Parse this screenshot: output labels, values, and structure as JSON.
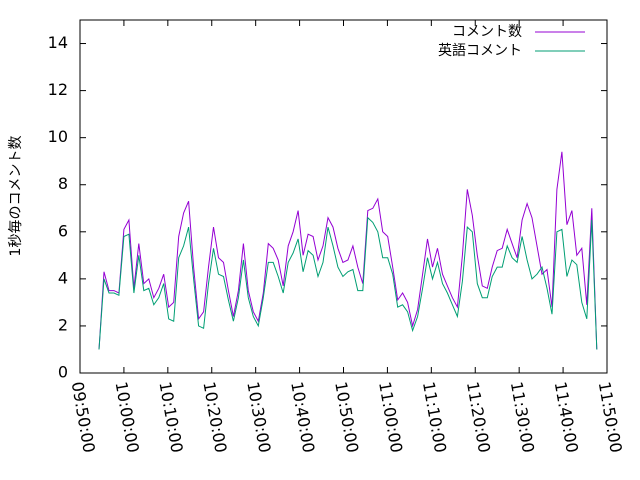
{
  "chart_data": {
    "type": "line",
    "ylabel": "1秒毎のコメント数",
    "x": [
      "09:54:20",
      "09:55:28",
      "09:56:36",
      "09:57:44",
      "09:58:52",
      "10:00:00",
      "10:01:08",
      "10:02:16",
      "10:03:24",
      "10:04:32",
      "10:05:40",
      "10:06:48",
      "10:07:56",
      "10:09:04",
      "10:10:12",
      "10:11:20",
      "10:12:28",
      "10:13:36",
      "10:14:44",
      "10:15:52",
      "10:17:00",
      "10:18:08",
      "10:19:16",
      "10:20:24",
      "10:21:32",
      "10:22:40",
      "10:23:48",
      "10:24:56",
      "10:26:04",
      "10:27:12",
      "10:28:20",
      "10:29:28",
      "10:30:36",
      "10:31:44",
      "10:32:52",
      "10:34:00",
      "10:35:08",
      "10:36:16",
      "10:37:24",
      "10:38:32",
      "10:39:40",
      "10:40:48",
      "10:41:56",
      "10:43:04",
      "10:44:12",
      "10:45:20",
      "10:46:28",
      "10:47:36",
      "10:48:44",
      "10:49:52",
      "10:51:00",
      "10:52:08",
      "10:53:16",
      "10:54:24",
      "10:55:32",
      "10:56:40",
      "10:57:48",
      "10:58:56",
      "11:00:04",
      "11:01:12",
      "11:02:20",
      "11:03:28",
      "11:04:36",
      "11:05:44",
      "11:06:52",
      "11:08:00",
      "11:09:08",
      "11:10:16",
      "11:11:24",
      "11:12:32",
      "11:13:40",
      "11:14:48",
      "11:15:56",
      "11:17:04",
      "11:18:12",
      "11:19:20",
      "11:20:28",
      "11:21:36",
      "11:22:44",
      "11:23:52",
      "11:25:00",
      "11:26:08",
      "11:27:16",
      "11:28:24",
      "11:29:32",
      "11:30:40",
      "11:31:48",
      "11:32:56",
      "11:34:04",
      "11:35:12",
      "11:36:20",
      "11:37:28",
      "11:38:36",
      "11:39:44",
      "11:40:52",
      "11:42:00",
      "11:43:08",
      "11:44:16",
      "11:45:24",
      "11:46:32",
      "11:47:40"
    ],
    "series": [
      {
        "name": "コメント数",
        "color": "#9400d3",
        "values": [
          1.0,
          4.3,
          3.5,
          3.5,
          3.4,
          6.1,
          6.5,
          3.6,
          5.5,
          3.8,
          4.0,
          3.2,
          3.6,
          4.2,
          2.8,
          3.0,
          5.8,
          6.8,
          7.3,
          4.5,
          2.3,
          2.6,
          4.5,
          6.2,
          4.9,
          4.7,
          3.5,
          2.4,
          3.5,
          5.5,
          3.5,
          2.6,
          2.2,
          3.4,
          5.5,
          5.3,
          4.8,
          3.7,
          5.4,
          6.0,
          6.9,
          5.0,
          5.9,
          5.8,
          4.8,
          5.4,
          6.6,
          6.2,
          5.3,
          4.7,
          4.8,
          5.4,
          4.5,
          3.8,
          6.9,
          7.0,
          7.4,
          6.0,
          5.8,
          4.5,
          3.1,
          3.4,
          3.0,
          2.0,
          2.7,
          4.2,
          5.7,
          4.5,
          5.3,
          4.2,
          3.7,
          3.2,
          2.8,
          5.0,
          7.8,
          6.7,
          5.0,
          3.7,
          3.6,
          4.5,
          5.2,
          5.3,
          6.1,
          5.5,
          4.9,
          6.5,
          7.2,
          6.6,
          5.4,
          4.2,
          4.4,
          2.8,
          7.8,
          9.4,
          6.3,
          6.9,
          5.0,
          5.3,
          2.9,
          7.0,
          1.0
        ]
      },
      {
        "name": "英語コメント",
        "color": "#009e73",
        "values": [
          1.0,
          4.0,
          3.4,
          3.4,
          3.3,
          5.8,
          5.9,
          3.4,
          5.0,
          3.5,
          3.6,
          2.9,
          3.2,
          3.8,
          2.3,
          2.2,
          4.9,
          5.4,
          6.2,
          4.0,
          2.0,
          1.9,
          3.8,
          5.3,
          4.2,
          4.1,
          3.1,
          2.2,
          3.2,
          4.8,
          3.2,
          2.4,
          2.0,
          3.2,
          4.7,
          4.7,
          4.1,
          3.4,
          4.7,
          5.1,
          5.7,
          4.3,
          5.2,
          5.0,
          4.1,
          4.7,
          6.2,
          5.4,
          4.5,
          4.1,
          4.3,
          4.4,
          3.5,
          3.5,
          6.6,
          6.4,
          6.0,
          4.9,
          4.9,
          4.2,
          2.8,
          2.9,
          2.6,
          1.8,
          2.4,
          3.6,
          4.9,
          4.0,
          4.7,
          3.8,
          3.4,
          2.9,
          2.4,
          3.9,
          6.2,
          6.0,
          3.8,
          3.2,
          3.2,
          4.1,
          4.5,
          4.5,
          5.4,
          4.9,
          4.7,
          5.8,
          4.8,
          4.0,
          4.2,
          4.5,
          3.6,
          2.5,
          6.0,
          6.1,
          4.1,
          4.8,
          4.6,
          3.0,
          2.3,
          6.5,
          1.0
        ]
      }
    ],
    "xlim": [
      "09:50:00",
      "11:50:00"
    ],
    "xticks": [
      "09:50:00",
      "10:00:00",
      "10:10:00",
      "10:20:00",
      "10:30:00",
      "10:40:00",
      "10:50:00",
      "11:00:00",
      "11:10:00",
      "11:20:00",
      "11:30:00",
      "11:40:00",
      "11:50:00"
    ],
    "ylim": [
      0,
      15
    ],
    "yticks": [
      0,
      2,
      4,
      6,
      8,
      10,
      12,
      14
    ],
    "grid": false,
    "legend": "top-right"
  }
}
